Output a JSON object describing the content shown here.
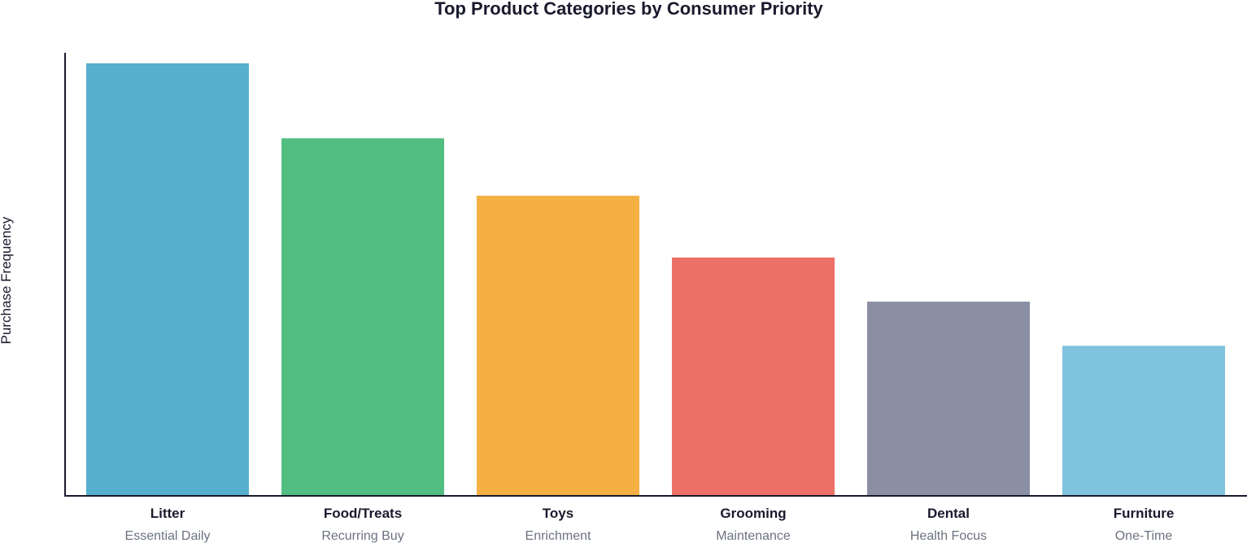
{
  "chart_data": {
    "type": "bar",
    "title": "Top Product Categories by Consumer Priority",
    "xlabel": "",
    "ylabel": "Purchase Frequency",
    "ylim": [
      0,
      100
    ],
    "grid": false,
    "categories": [
      "Litter",
      "Food/Treats",
      "Toys",
      "Grooming",
      "Dental",
      "Furniture"
    ],
    "subtitles": [
      "Essential Daily",
      "Recurring Buy",
      "Enrichment",
      "Maintenance",
      "Health Focus",
      "One-Time"
    ],
    "values": [
      98,
      81,
      68,
      54,
      44,
      34
    ],
    "colors": [
      "#56b0ce",
      "#52be82",
      "#f4b043",
      "#ec7065",
      "#8b8fa3",
      "#7fc3dc"
    ]
  }
}
